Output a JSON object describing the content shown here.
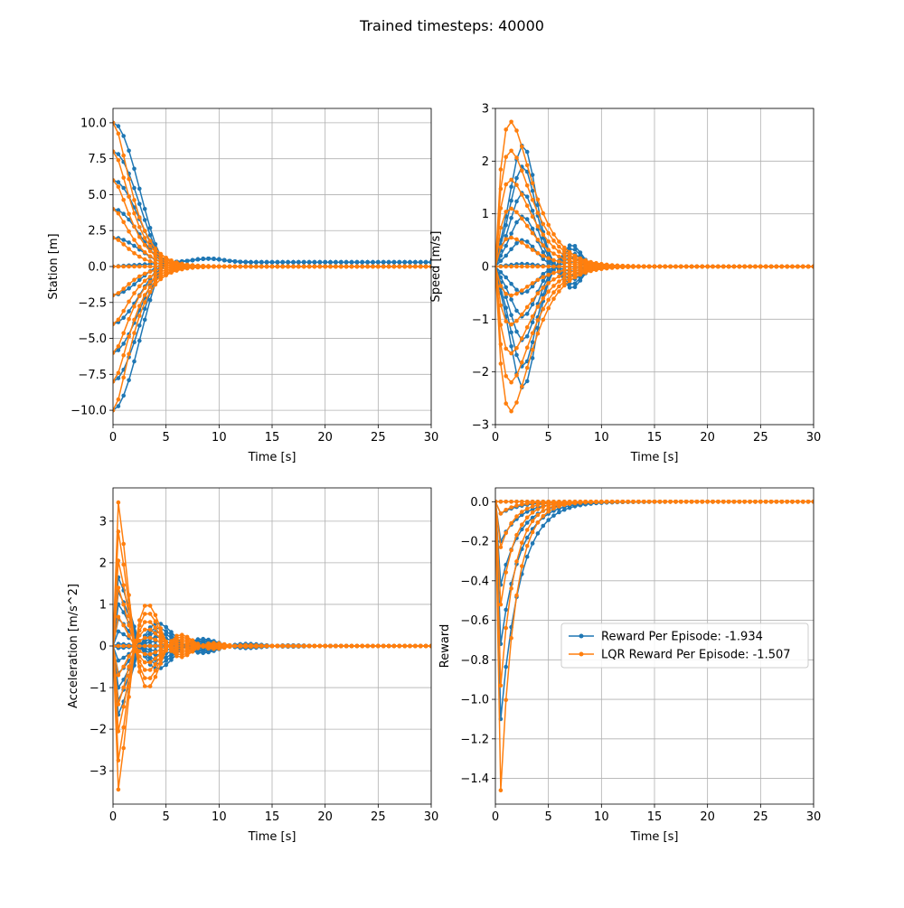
{
  "figure": {
    "suptitle": "Trained timesteps: 40000"
  },
  "colors": {
    "rl": "#1f77b4",
    "lqr": "#ff7f0e",
    "grid": "#b0b0b0"
  },
  "legend": {
    "location": "center-right",
    "entries": [
      "Reward Per Episode: -1.934",
      "LQR Reward Per Episode: -1.507"
    ]
  },
  "chart_data": [
    {
      "type": "line",
      "title": "",
      "xlabel": "Time [s]",
      "ylabel": "Station [m]",
      "xlim": [
        0,
        30
      ],
      "ylim": [
        -11,
        11
      ],
      "grid": true,
      "xticks": [
        "0",
        "5",
        "10",
        "15",
        "20",
        "25",
        "30"
      ],
      "yticks": [
        "-10.0",
        "-7.5",
        "-5.0",
        "-2.5",
        "0.0",
        "2.5",
        "5.0",
        "7.5",
        "10.0"
      ],
      "episodes_initial_station": [
        -10,
        -8,
        -6,
        -4,
        -2,
        0,
        2,
        4,
        6,
        8,
        10
      ],
      "series": [
        {
          "name": "Reward Per Episode: -1.934",
          "kind": "rl",
          "settle_time": 5.5,
          "final_value": 0.3
        },
        {
          "name": "LQR Reward Per Episode: -1.507",
          "kind": "lqr",
          "settle_time": 5.0,
          "final_value": 0.0
        }
      ]
    },
    {
      "type": "line",
      "title": "",
      "xlabel": "Time [s]",
      "ylabel": "Speed [m/s]",
      "xlim": [
        0,
        30
      ],
      "ylim": [
        -3,
        3
      ],
      "grid": true,
      "xticks": [
        "0",
        "5",
        "10",
        "15",
        "20",
        "25",
        "30"
      ],
      "yticks": [
        "-3",
        "-2",
        "-1",
        "0",
        "1",
        "2",
        "3"
      ],
      "peak_speed_rl": [
        2.3,
        1.9,
        1.4,
        0.95,
        0.5,
        0.05
      ],
      "peak_speed_lqr": [
        2.75,
        2.2,
        1.65,
        1.1,
        0.55,
        0.0
      ],
      "series": [
        {
          "name": "Reward Per Episode: -1.934",
          "kind": "rl",
          "peak_time": 2.5,
          "settle_time": 11
        },
        {
          "name": "LQR Reward Per Episode: -1.507",
          "kind": "lqr",
          "peak_time": 1.5,
          "settle_time": 8
        }
      ]
    },
    {
      "type": "line",
      "title": "",
      "xlabel": "Time [s]",
      "ylabel": "Acceleration [m/s^2]",
      "xlim": [
        0,
        30
      ],
      "ylim": [
        -3.8,
        3.8
      ],
      "grid": true,
      "xticks": [
        "0",
        "5",
        "10",
        "15",
        "20",
        "25",
        "30"
      ],
      "yticks": [
        "-3",
        "-2",
        "-1",
        "0",
        "1",
        "2",
        "3"
      ],
      "initial_accel_rl": [
        1.65,
        1.3,
        1.0,
        0.65,
        0.35,
        0.05
      ],
      "initial_accel_lqr": [
        3.45,
        2.75,
        2.05,
        1.4,
        0.7,
        0.0
      ],
      "series": [
        {
          "name": "Reward Per Episode: -1.934",
          "kind": "rl",
          "settle_time": 10
        },
        {
          "name": "LQR Reward Per Episode: -1.507",
          "kind": "lqr",
          "settle_time": 8
        }
      ]
    },
    {
      "type": "line",
      "title": "",
      "xlabel": "Time [s]",
      "ylabel": "Reward",
      "xlim": [
        0,
        30
      ],
      "ylim": [
        -1.53,
        0.07
      ],
      "grid": true,
      "xticks": [
        "0",
        "5",
        "10",
        "15",
        "20",
        "25",
        "30"
      ],
      "yticks": [
        "-1.4",
        "-1.2",
        "-1.0",
        "-0.8",
        "-0.6",
        "-0.4",
        "-0.2",
        "0.0"
      ],
      "min_reward_rl": [
        -1.1,
        -0.72,
        -0.42,
        -0.2,
        -0.06,
        0.0
      ],
      "min_reward_lqr": [
        -1.46,
        -0.93,
        -0.52,
        -0.23,
        -0.06,
        0.0
      ],
      "series": [
        {
          "name": "Reward Per Episode: -1.934",
          "kind": "rl"
        },
        {
          "name": "LQR Reward Per Episode: -1.507",
          "kind": "lqr"
        }
      ]
    }
  ]
}
